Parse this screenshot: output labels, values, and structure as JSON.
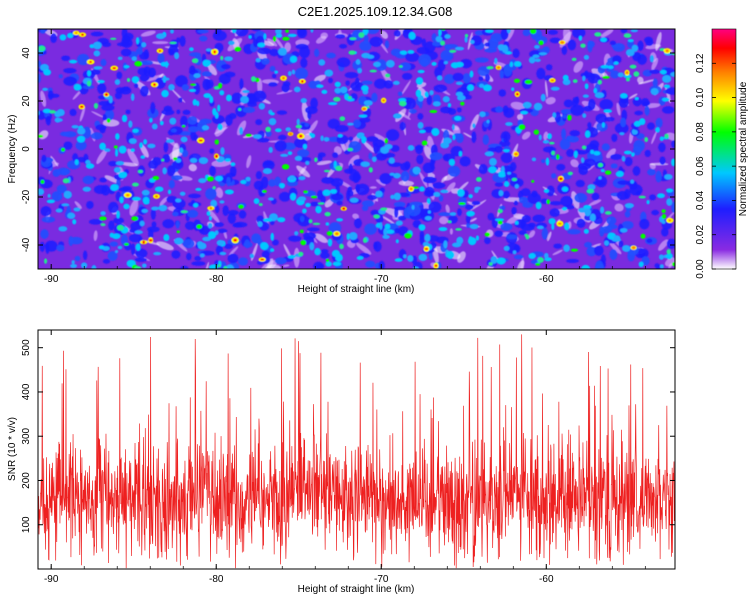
{
  "figure": {
    "title": "C2E1.2025.109.12.34.G08"
  },
  "chart_data": [
    {
      "type": "heatmap",
      "xlabel": "Height of straight line (km)",
      "ylabel": "Frequency (Hz)",
      "x_ticks": [
        "-90",
        "-80",
        "-70",
        "-60"
      ],
      "y_ticks": [
        "40",
        "20",
        "0",
        "-20",
        "-40"
      ],
      "xlim": [
        -90.8,
        -52.2
      ],
      "ylim": [
        -50,
        50
      ],
      "colorbar": {
        "label": "Normalized spectral amplitude",
        "ticks": [
          "0.00",
          "0.02",
          "0.04",
          "0.06",
          "0.08",
          "0.10",
          "0.12"
        ],
        "range": [
          0,
          0.14
        ],
        "colors": [
          "#ffffff",
          "#8a2be2",
          "#1e1eff",
          "#00c8ff",
          "#00ff00",
          "#ffff00",
          "#ff8000",
          "#ff0000",
          "#ff0080"
        ]
      },
      "description_values": {
        "typical_amplitude": 0.03,
        "max_amplitude": 0.13
      }
    },
    {
      "type": "line",
      "xlabel": "Height of straight line (km)",
      "ylabel": "SNR (10 * v/v)",
      "x_ticks": [
        "-90",
        "-80",
        "-70",
        "-60"
      ],
      "y_ticks": [
        "100",
        "200",
        "300",
        "400",
        "500"
      ],
      "xlim": [
        -90.8,
        -52.2
      ],
      "ylim": [
        0,
        540
      ],
      "series": [
        {
          "color": "#ee2020",
          "typical_range": [
            40,
            320
          ],
          "mean": 160,
          "max": 535
        }
      ]
    }
  ]
}
